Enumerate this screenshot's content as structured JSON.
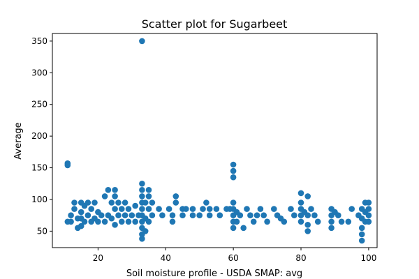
{
  "chart_data": {
    "type": "scatter",
    "title": "Scatter plot for Sugarbeet",
    "xlabel": "Soil moisture profile - USDA SMAP: avg",
    "ylabel": "Average",
    "xlim": [
      6.5,
      102.5
    ],
    "ylim": [
      24,
      362
    ],
    "xticks": [
      20,
      40,
      60,
      80,
      100
    ],
    "yticks": [
      50,
      100,
      150,
      200,
      250,
      300,
      350
    ],
    "grid": false,
    "marker_color": "#1f77b4",
    "points": [
      {
        "x": 11,
        "y": 157
      },
      {
        "x": 11,
        "y": 154
      },
      {
        "x": 11,
        "y": 65
      },
      {
        "x": 12,
        "y": 75
      },
      {
        "x": 12,
        "y": 65
      },
      {
        "x": 13,
        "y": 95
      },
      {
        "x": 13,
        "y": 85
      },
      {
        "x": 14,
        "y": 70
      },
      {
        "x": 14,
        "y": 55
      },
      {
        "x": 15,
        "y": 95
      },
      {
        "x": 15,
        "y": 80
      },
      {
        "x": 15,
        "y": 70
      },
      {
        "x": 15,
        "y": 58
      },
      {
        "x": 16,
        "y": 90
      },
      {
        "x": 16,
        "y": 65
      },
      {
        "x": 17,
        "y": 95
      },
      {
        "x": 17,
        "y": 75
      },
      {
        "x": 18,
        "y": 85
      },
      {
        "x": 18,
        "y": 65
      },
      {
        "x": 19,
        "y": 95
      },
      {
        "x": 19,
        "y": 70
      },
      {
        "x": 20,
        "y": 80
      },
      {
        "x": 20,
        "y": 65
      },
      {
        "x": 21,
        "y": 75
      },
      {
        "x": 22,
        "y": 105
      },
      {
        "x": 22,
        "y": 65
      },
      {
        "x": 23,
        "y": 115
      },
      {
        "x": 23,
        "y": 75
      },
      {
        "x": 24,
        "y": 95
      },
      {
        "x": 24,
        "y": 70
      },
      {
        "x": 25,
        "y": 115
      },
      {
        "x": 25,
        "y": 105
      },
      {
        "x": 25,
        "y": 85
      },
      {
        "x": 25,
        "y": 60
      },
      {
        "x": 26,
        "y": 95
      },
      {
        "x": 26,
        "y": 75
      },
      {
        "x": 27,
        "y": 85
      },
      {
        "x": 27,
        "y": 65
      },
      {
        "x": 28,
        "y": 95
      },
      {
        "x": 28,
        "y": 75
      },
      {
        "x": 29,
        "y": 85
      },
      {
        "x": 29,
        "y": 65
      },
      {
        "x": 30,
        "y": 75
      },
      {
        "x": 31,
        "y": 90
      },
      {
        "x": 31,
        "y": 65
      },
      {
        "x": 32,
        "y": 75
      },
      {
        "x": 33,
        "y": 350
      },
      {
        "x": 33,
        "y": 125
      },
      {
        "x": 33,
        "y": 115
      },
      {
        "x": 33,
        "y": 105
      },
      {
        "x": 33,
        "y": 95
      },
      {
        "x": 33,
        "y": 85
      },
      {
        "x": 33,
        "y": 75
      },
      {
        "x": 33,
        "y": 65
      },
      {
        "x": 33,
        "y": 55
      },
      {
        "x": 33,
        "y": 45
      },
      {
        "x": 33,
        "y": 38
      },
      {
        "x": 34,
        "y": 95
      },
      {
        "x": 34,
        "y": 70
      },
      {
        "x": 34,
        "y": 50
      },
      {
        "x": 35,
        "y": 115
      },
      {
        "x": 35,
        "y": 105
      },
      {
        "x": 35,
        "y": 85
      },
      {
        "x": 35,
        "y": 65
      },
      {
        "x": 36,
        "y": 95
      },
      {
        "x": 36,
        "y": 75
      },
      {
        "x": 38,
        "y": 85
      },
      {
        "x": 39,
        "y": 75
      },
      {
        "x": 41,
        "y": 85
      },
      {
        "x": 42,
        "y": 75
      },
      {
        "x": 42,
        "y": 65
      },
      {
        "x": 43,
        "y": 105
      },
      {
        "x": 43,
        "y": 95
      },
      {
        "x": 45,
        "y": 85
      },
      {
        "x": 45,
        "y": 75
      },
      {
        "x": 46,
        "y": 85
      },
      {
        "x": 48,
        "y": 85
      },
      {
        "x": 48,
        "y": 75
      },
      {
        "x": 50,
        "y": 75
      },
      {
        "x": 51,
        "y": 85
      },
      {
        "x": 52,
        "y": 95
      },
      {
        "x": 53,
        "y": 85
      },
      {
        "x": 53,
        "y": 75
      },
      {
        "x": 55,
        "y": 85
      },
      {
        "x": 56,
        "y": 75
      },
      {
        "x": 58,
        "y": 85
      },
      {
        "x": 59,
        "y": 85
      },
      {
        "x": 60,
        "y": 155
      },
      {
        "x": 60,
        "y": 145
      },
      {
        "x": 60,
        "y": 135
      },
      {
        "x": 60,
        "y": 95
      },
      {
        "x": 60,
        "y": 85
      },
      {
        "x": 60,
        "y": 75
      },
      {
        "x": 60,
        "y": 65
      },
      {
        "x": 60,
        "y": 55
      },
      {
        "x": 61,
        "y": 80
      },
      {
        "x": 61,
        "y": 65
      },
      {
        "x": 62,
        "y": 75
      },
      {
        "x": 63,
        "y": 55
      },
      {
        "x": 64,
        "y": 85
      },
      {
        "x": 65,
        "y": 75
      },
      {
        "x": 66,
        "y": 65
      },
      {
        "x": 67,
        "y": 75
      },
      {
        "x": 68,
        "y": 85
      },
      {
        "x": 69,
        "y": 75
      },
      {
        "x": 70,
        "y": 65
      },
      {
        "x": 72,
        "y": 85
      },
      {
        "x": 73,
        "y": 75
      },
      {
        "x": 74,
        "y": 70
      },
      {
        "x": 75,
        "y": 65
      },
      {
        "x": 77,
        "y": 85
      },
      {
        "x": 78,
        "y": 75
      },
      {
        "x": 80,
        "y": 110
      },
      {
        "x": 80,
        "y": 95
      },
      {
        "x": 80,
        "y": 85
      },
      {
        "x": 80,
        "y": 75
      },
      {
        "x": 80,
        "y": 65
      },
      {
        "x": 81,
        "y": 80
      },
      {
        "x": 82,
        "y": 105
      },
      {
        "x": 82,
        "y": 75
      },
      {
        "x": 82,
        "y": 60
      },
      {
        "x": 82,
        "y": 50
      },
      {
        "x": 83,
        "y": 85
      },
      {
        "x": 84,
        "y": 75
      },
      {
        "x": 85,
        "y": 65
      },
      {
        "x": 89,
        "y": 85
      },
      {
        "x": 89,
        "y": 75
      },
      {
        "x": 89,
        "y": 65
      },
      {
        "x": 89,
        "y": 55
      },
      {
        "x": 90,
        "y": 80
      },
      {
        "x": 91,
        "y": 75
      },
      {
        "x": 92,
        "y": 65
      },
      {
        "x": 94,
        "y": 65
      },
      {
        "x": 95,
        "y": 85
      },
      {
        "x": 97,
        "y": 75
      },
      {
        "x": 98,
        "y": 85
      },
      {
        "x": 98,
        "y": 70
      },
      {
        "x": 98,
        "y": 55
      },
      {
        "x": 98,
        "y": 45
      },
      {
        "x": 98,
        "y": 35
      },
      {
        "x": 99,
        "y": 95
      },
      {
        "x": 99,
        "y": 80
      },
      {
        "x": 99,
        "y": 65
      },
      {
        "x": 100,
        "y": 95
      },
      {
        "x": 100,
        "y": 85
      },
      {
        "x": 100,
        "y": 75
      },
      {
        "x": 100,
        "y": 65
      }
    ]
  }
}
